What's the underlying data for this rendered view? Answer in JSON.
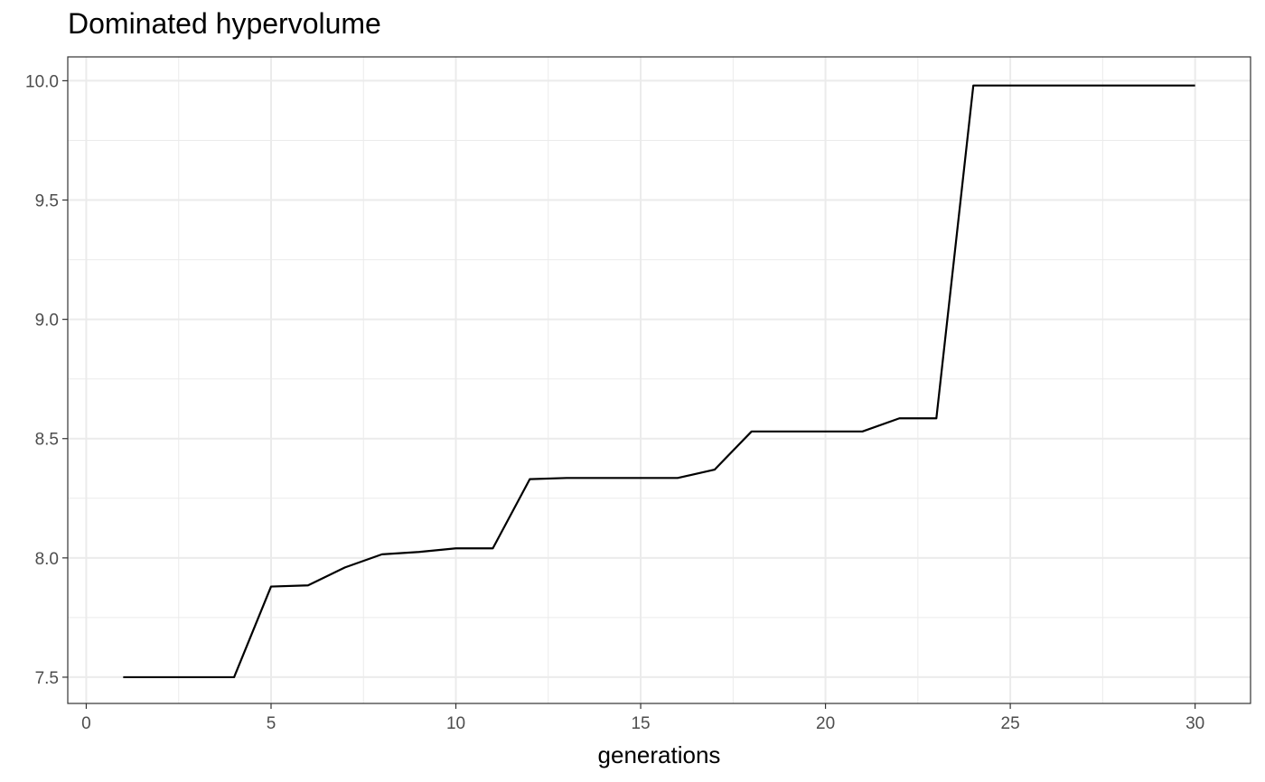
{
  "chart_data": {
    "type": "line",
    "title": "Dominated hypervolume",
    "xlabel": "generations",
    "ylabel": "",
    "xlim": [
      -0.5,
      31.5
    ],
    "ylim": [
      7.39,
      10.1
    ],
    "x_ticks": [
      0,
      5,
      10,
      15,
      20,
      25,
      30
    ],
    "x_tick_labels": [
      "0",
      "5",
      "10",
      "15",
      "20",
      "25",
      "30"
    ],
    "x_minor_ticks": [
      2.5,
      7.5,
      12.5,
      17.5,
      22.5,
      27.5
    ],
    "y_ticks": [
      7.5,
      8.0,
      8.5,
      9.0,
      9.5,
      10.0
    ],
    "y_tick_labels": [
      "7.5",
      "8.0",
      "8.5",
      "9.0",
      "9.5",
      "10.0"
    ],
    "y_minor_ticks": [
      7.75,
      8.25,
      8.75,
      9.25,
      9.75
    ],
    "grid": true,
    "legend": "none",
    "colors": {
      "line": "#000000",
      "grid": "#ebebeb",
      "panel_border": "#333333",
      "tick_text": "#4d4d4d"
    },
    "series": [
      {
        "x": [
          1,
          2,
          3,
          4,
          5,
          6,
          7,
          8,
          9,
          10,
          11,
          12,
          13,
          14,
          15,
          16,
          17,
          18,
          19,
          20,
          21,
          22,
          23,
          24,
          25,
          26,
          27,
          28,
          29,
          30
        ],
        "y": [
          7.5,
          7.5,
          7.5,
          7.5,
          7.88,
          7.885,
          7.96,
          8.015,
          8.025,
          8.04,
          8.04,
          8.33,
          8.335,
          8.335,
          8.335,
          8.335,
          8.37,
          8.53,
          8.53,
          8.53,
          8.53,
          8.585,
          8.585,
          9.98,
          9.98,
          9.98,
          9.98,
          9.98,
          9.98,
          9.98
        ]
      }
    ]
  }
}
